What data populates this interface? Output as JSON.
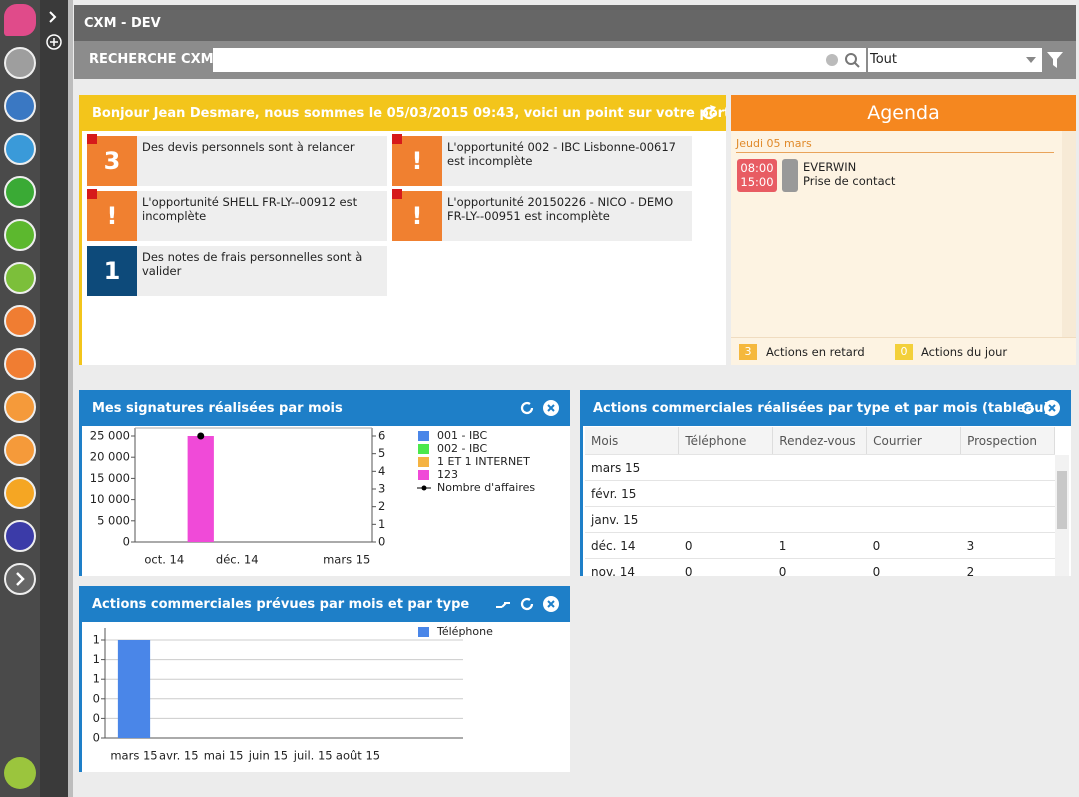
{
  "header": {
    "title": "CXM - DEV",
    "search_label": "RECHERCHE CXM",
    "filter": "Tout"
  },
  "welcome": {
    "title": "Bonjour Jean Desmare, nous sommes le 05/03/2015 09:43, voici un point sur votre portefeuille ...",
    "tiles": [
      {
        "badge": "3",
        "text": "Des devis personnels sont à relancer"
      },
      {
        "badge": "!",
        "text": "L'opportunité 002 - IBC Lisbonne-00617 est incomplète"
      },
      {
        "badge": "!",
        "text": "L'opportunité SHELL FR-LY--00912 est incomplète"
      },
      {
        "badge": "!",
        "text": "L'opportunité 20150226 - NICO - DEMO FR-LY--00951 est incomplète"
      },
      {
        "badge": "1",
        "text": "Des notes de frais personnelles sont à valider"
      }
    ]
  },
  "agenda": {
    "title": "Agenda",
    "day": "Jeudi 05 mars",
    "events": [
      {
        "start": "08:00",
        "end": "15:00",
        "company": "EVERWIN",
        "label": "Prise de contact"
      }
    ],
    "late_count": "3",
    "late_label": "Actions en retard",
    "today_count": "0",
    "today_label": "Actions du jour"
  },
  "table": {
    "title": "Actions commerciales réalisées par type et par mois (tableau)",
    "columns": [
      "Mois",
      "Téléphone",
      "Rendez-vous",
      "Courrier",
      "Prospection"
    ],
    "rows": [
      [
        "mars 15"
      ],
      [
        "févr. 15"
      ],
      [
        "janv. 15"
      ],
      [
        "déc. 14",
        0,
        1,
        0,
        3
      ],
      [
        "nov. 14",
        0,
        0,
        0,
        2
      ]
    ]
  },
  "chart_data": [
    {
      "type": "bar",
      "title": "Mes signatures réalisées par mois",
      "stacked": true,
      "categories": [
        "oct. 14",
        null,
        "déc. 14",
        null,
        null,
        "mars 15"
      ],
      "series": [
        {
          "name": "001 - IBC",
          "color": "#4a86e8",
          "values": [
            0,
            0,
            0,
            0,
            0,
            0
          ]
        },
        {
          "name": "002 - IBC",
          "color": "#4ce84c",
          "values": [
            0,
            0,
            0,
            0,
            0,
            0
          ]
        },
        {
          "name": "1 ET 1 INTERNET",
          "color": "#f5b342",
          "values": [
            0,
            0,
            0,
            0,
            0,
            0
          ]
        },
        {
          "name": "123",
          "color": "#f04ad8",
          "values": [
            0,
            25000,
            0,
            0,
            0,
            0
          ]
        },
        {
          "name": "Nombre d'affaires",
          "type": "line",
          "axis": "y2",
          "color": "#000000",
          "values": [
            null,
            6,
            null,
            null,
            null,
            null
          ]
        }
      ],
      "ylim": [
        0,
        25000
      ],
      "yticks": [
        0,
        {
          "value": 5000,
          "label": "5 000"
        },
        {
          "value": 10000,
          "label": "10 000"
        },
        {
          "value": 15000,
          "label": "15 000"
        },
        {
          "value": 20000,
          "label": "20 000"
        },
        {
          "value": 25000,
          "label": "25 000"
        }
      ],
      "y2lim": [
        0,
        6
      ],
      "y2ticks": [
        0,
        1,
        2,
        3,
        4,
        5,
        6
      ],
      "grid": false
    },
    {
      "type": "bar",
      "title": "Actions commerciales prévues par mois et par type",
      "stacked": true,
      "categories": [
        "mars 15",
        "avr. 15",
        "mai 15",
        "juin 15",
        "juil. 15",
        "août 15"
      ],
      "series": [
        {
          "name": "Téléphone",
          "color": "#4a86e8",
          "values": [
            1,
            0,
            0,
            0,
            0,
            0
          ]
        }
      ],
      "ylim": [
        0,
        1
      ],
      "yticks": [
        0,
        {
          "value": 0.2,
          "label": "0"
        },
        {
          "value": 0.4,
          "label": "0"
        },
        {
          "value": 0.6,
          "label": "1"
        },
        {
          "value": 0.8,
          "label": "1"
        },
        1
      ],
      "grid": true
    }
  ]
}
